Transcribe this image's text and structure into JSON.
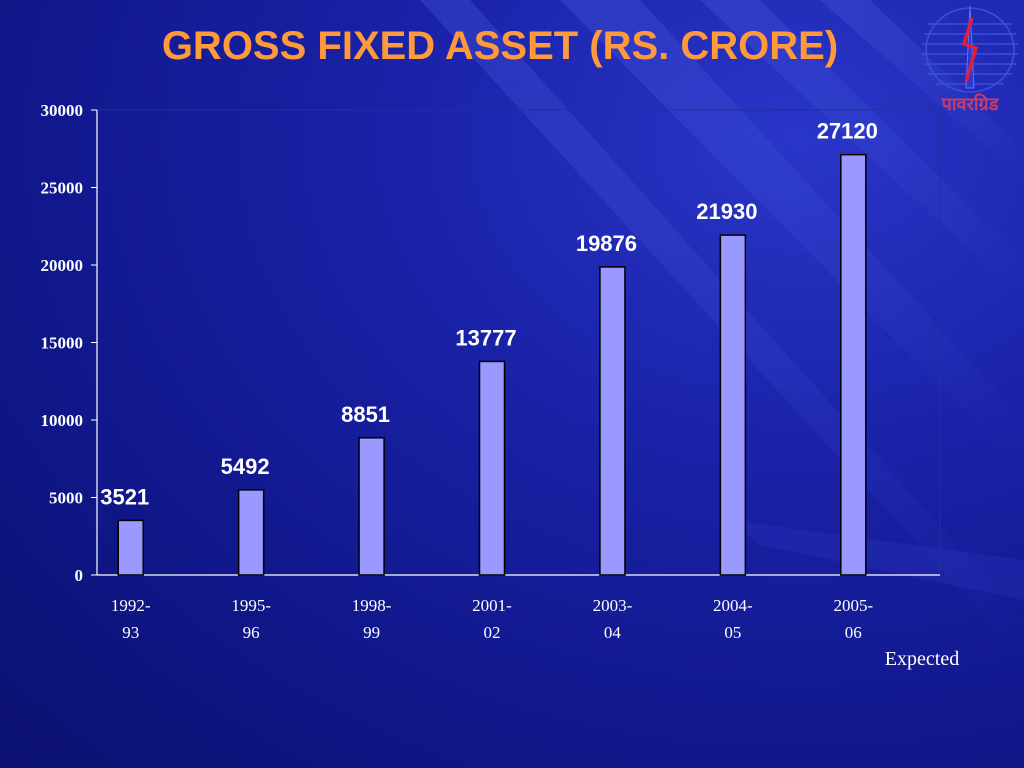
{
  "slide": {
    "title": "GROSS FIXED ASSET (RS. CRORE)",
    "logo_text": "पावरग्रिड",
    "footnote": "Expected"
  },
  "colors": {
    "title": "#ff9a3c",
    "bar_fill": "#9999ff",
    "bar_stroke": "#000000",
    "text": "#ffffff",
    "axis": "#ffffff",
    "logo": "#c63c6a"
  },
  "icons": {
    "logo": "powergrid-logo-icon"
  },
  "chart_data": {
    "type": "bar",
    "title": "GROSS FIXED ASSET (RS. CRORE)",
    "xlabel": "",
    "ylabel": "",
    "categories": [
      [
        "1992-",
        "93"
      ],
      [
        "1995-",
        "96"
      ],
      [
        "1998-",
        "99"
      ],
      [
        "2001-",
        "02"
      ],
      [
        "2003-",
        "04"
      ],
      [
        "2004-",
        "05"
      ],
      [
        "2005-",
        "06"
      ]
    ],
    "values": [
      3521,
      5492,
      8851,
      13777,
      19876,
      21930,
      27120
    ],
    "data_labels": [
      "3521",
      "5492",
      "8851",
      "13777",
      "19876",
      "21930",
      "27120"
    ],
    "ylim": [
      0,
      30000
    ],
    "yticks": [
      0,
      5000,
      10000,
      15000,
      20000,
      25000,
      30000
    ],
    "grid": false,
    "legend": "none"
  }
}
